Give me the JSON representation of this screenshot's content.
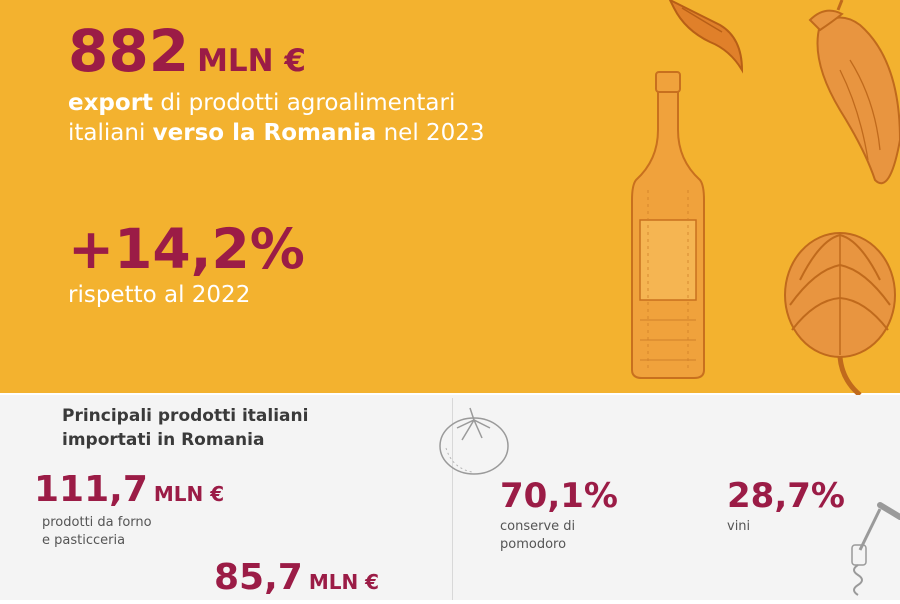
{
  "headline": {
    "value": "882",
    "unit": "MLN €",
    "line1_bold": "export",
    "line1_rest": " di prodotti agroalimentari",
    "line2_pre": "italiani ",
    "line2_bold": "verso la Romania",
    "line2_post": " nel 2023"
  },
  "growth": {
    "value": "+14,2%",
    "caption": "rispetto al 2022"
  },
  "products": {
    "title_line1": "Principali prodotti italiani",
    "title_line2": "importati in Romania",
    "items": [
      {
        "value": "111,7",
        "unit": "MLN €",
        "label_line1": "prodotti da forno",
        "label_line2": "e pasticceria"
      },
      {
        "value": "85,7",
        "unit": "MLN €"
      }
    ]
  },
  "shares": [
    {
      "value": "70,1%",
      "label_line1": "conserve di",
      "label_line2": "pomodoro"
    },
    {
      "value": "28,7%",
      "label_line1": "vini"
    }
  ],
  "colors": {
    "accent_maroon": "#9b1c46",
    "background_orange": "#f3b22f",
    "background_grey": "#f4f4f4",
    "sketch_orange": "#d9781f"
  },
  "icons": [
    "chili-pepper-icon",
    "eggplant-icon",
    "wine-bottle-icon",
    "artichoke-icon",
    "tomato-icon",
    "corkscrew-icon"
  ]
}
